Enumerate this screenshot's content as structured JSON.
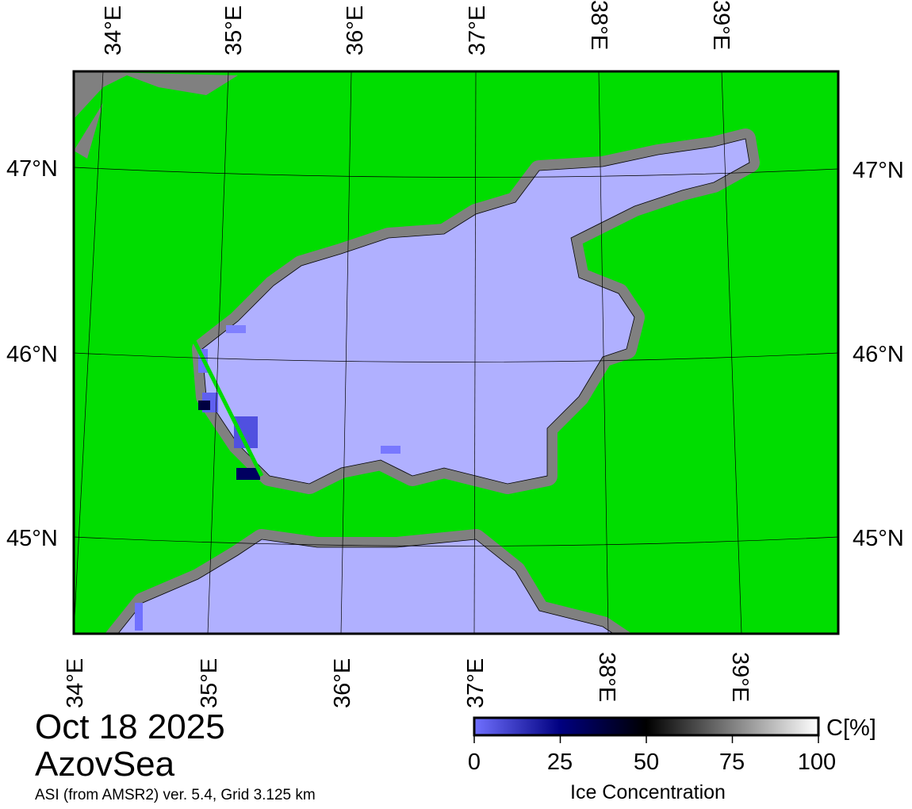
{
  "map": {
    "colors": {
      "land": "#00dd00",
      "water_no_ice": "#b0b0ff",
      "coast_mask": "#808080",
      "graticule": "#000000"
    },
    "lon_labels_top": [
      "34°E",
      "35°E",
      "36°E",
      "37°E",
      "38°E",
      "39°E"
    ],
    "lon_labels_bottom": [
      "34°E",
      "35°E",
      "36°E",
      "37°E",
      "38°E",
      "39°E"
    ],
    "lat_labels_left": [
      "47°N",
      "46°N",
      "45°N"
    ],
    "lat_labels_right": [
      "47°N",
      "46°N",
      "45°N"
    ]
  },
  "info": {
    "date": "Oct 18 2025",
    "region": "AzovSea",
    "source": "ASI (from AMSR2) ver. 5.4,  Grid 3.125 km"
  },
  "colorbar": {
    "unit": "C[%]",
    "title": "Ice Concentration",
    "ticks": [
      "0",
      "25",
      "50",
      "75",
      "100"
    ],
    "range": [
      0,
      100
    ],
    "stops": [
      {
        "value": 0,
        "color": "#7070ff"
      },
      {
        "value": 25,
        "color": "#000080"
      },
      {
        "value": 50,
        "color": "#000000"
      },
      {
        "value": 100,
        "color": "#ffffff"
      }
    ]
  }
}
